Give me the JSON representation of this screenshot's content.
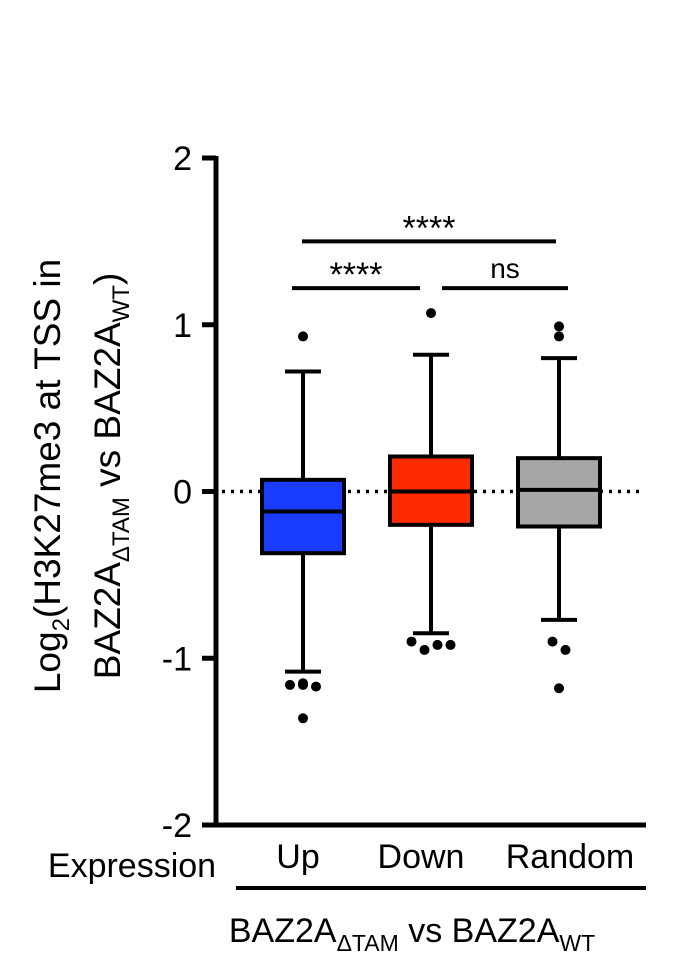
{
  "chart_data": {
    "type": "box",
    "ylabel": {
      "line1_main": "Log",
      "line1_sub": "2",
      "line1_rest": "(H3K27me3 at TSS in",
      "line2_main": "BAZ2A",
      "line2_sub": "ΔTAM",
      "line2_mid": " vs BAZ2A",
      "line2_sub2": "WT",
      "line2_end": ")"
    },
    "ylim": [
      -2,
      2
    ],
    "yticks": [
      {
        "value": 2,
        "label": "2"
      },
      {
        "value": 1,
        "label": "1"
      },
      {
        "value": 0,
        "label": "0"
      },
      {
        "value": -1,
        "label": "-1"
      },
      {
        "value": -2,
        "label": "-2"
      }
    ],
    "reference_line": 0,
    "x_row_label": "Expression",
    "group_label": {
      "main": "BAZ2A",
      "sub": "ΔTAM",
      "mid": " vs BAZ2A",
      "sub2": "WT"
    },
    "categories": [
      "Up",
      "Down",
      "Random"
    ],
    "boxes": [
      {
        "category": "Up",
        "color": "#1a3cff",
        "whisker_low": -1.08,
        "q1": -0.37,
        "median": -0.12,
        "q3": 0.07,
        "whisker_high": 0.72,
        "outliers": [
          0.93,
          -1.16,
          -1.16,
          -1.17,
          -1.15,
          -1.36
        ]
      },
      {
        "category": "Down",
        "color": "#ff2a00",
        "whisker_low": -0.85,
        "q1": -0.2,
        "median": 0.0,
        "q3": 0.21,
        "whisker_high": 0.82,
        "outliers": [
          1.07,
          -0.9,
          -0.95,
          -0.92,
          -0.92
        ]
      },
      {
        "category": "Random",
        "color": "#a6a6a6",
        "whisker_low": -0.77,
        "q1": -0.21,
        "median": 0.01,
        "q3": 0.2,
        "whisker_high": 0.8,
        "outliers": [
          0.99,
          0.93,
          -0.9,
          -0.95,
          -1.18
        ]
      }
    ],
    "significance": [
      {
        "from": "Up",
        "to": "Random",
        "label": "****",
        "level": 1.5
      },
      {
        "from": "Up",
        "to": "Down",
        "label": "****",
        "level": 1.22
      },
      {
        "from": "Down",
        "to": "Random",
        "label": "ns",
        "level": 1.22
      }
    ]
  }
}
